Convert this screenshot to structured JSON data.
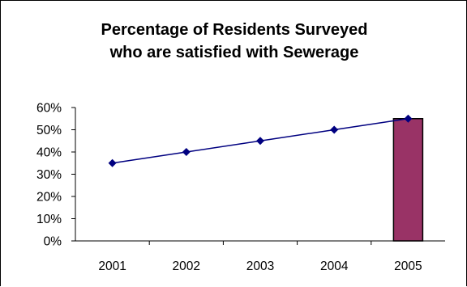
{
  "chart_data": {
    "type": "line",
    "title_lines": [
      "Percentage of Residents Surveyed",
      "who are satisfied with Sewerage"
    ],
    "xlabel": "",
    "ylabel": "",
    "categories": [
      "2001",
      "2002",
      "2003",
      "2004",
      "2005"
    ],
    "y_ticks": [
      "0%",
      "10%",
      "20%",
      "30%",
      "40%",
      "50%",
      "60%"
    ],
    "ylim": [
      0,
      60
    ],
    "grid": false,
    "legend": "none",
    "series": [
      {
        "values": [
          35,
          40,
          45,
          50,
          55
        ],
        "color": "#000080",
        "marker": "diamond"
      }
    ],
    "highlight_bar": {
      "category": "2005",
      "value": 55,
      "color": "#993366"
    }
  }
}
